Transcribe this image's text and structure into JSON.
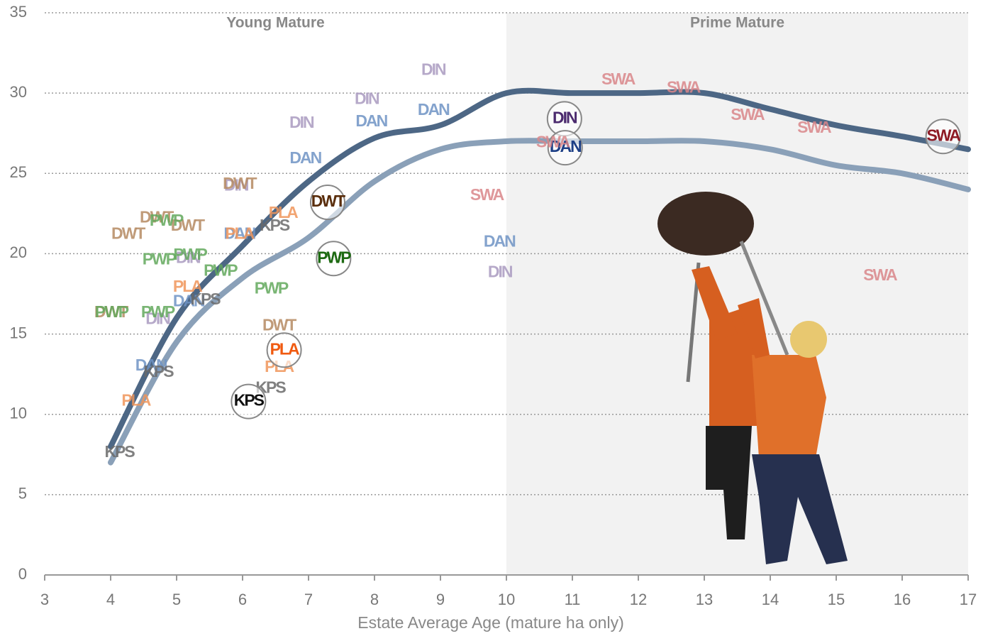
{
  "chart_data": {
    "type": "scatter",
    "xlabel": "Estate Average Age (mature ha only)",
    "xlim": [
      3,
      17
    ],
    "xticks": [
      3,
      4,
      5,
      6,
      7,
      8,
      9,
      10,
      11,
      12,
      13,
      14,
      15,
      16,
      17
    ],
    "ylim": [
      0,
      35
    ],
    "yticks": [
      0,
      5,
      10,
      15,
      20,
      25,
      30,
      35
    ],
    "grid": true,
    "regions": [
      {
        "label": "Young Mature",
        "xlim": [
          3,
          10
        ],
        "shaded": false
      },
      {
        "label": "Prime Mature",
        "xlim": [
          10,
          17
        ],
        "shaded": true
      }
    ],
    "curves": [
      {
        "color": "#4d6785",
        "x": [
          4,
          5,
          6,
          7,
          8,
          9,
          10,
          11,
          12,
          13,
          14,
          15,
          16,
          17
        ],
        "values": [
          8,
          16,
          20.5,
          24.5,
          27.2,
          28,
          30,
          30,
          30,
          30,
          29,
          28,
          27.3,
          26.5
        ]
      },
      {
        "color": "#8aa0b8",
        "x": [
          4,
          5,
          6,
          7,
          8,
          9,
          10,
          11,
          12,
          13,
          14,
          15,
          16,
          17
        ],
        "values": [
          7,
          14.5,
          18.5,
          21,
          24.5,
          26.5,
          27,
          27,
          27,
          27,
          26.5,
          25.5,
          25,
          24
        ]
      }
    ],
    "series": [
      {
        "name": "DIN",
        "color": "#a99ac0",
        "highlight": 7,
        "highlight_color": "#4b2a6e",
        "x": [
          8.89,
          7.88,
          6.89,
          5.9,
          5.17,
          4.71,
          9.9,
          10.88
        ],
        "values": [
          31.4,
          29.6,
          28.1,
          24.2,
          19.7,
          15.9,
          18.8,
          28.4
        ]
      },
      {
        "name": "DAN",
        "color": "#6f93c4",
        "highlight": 7,
        "highlight_color": "#1d3f86",
        "x": [
          8.89,
          7.95,
          6.95,
          5.95,
          5.18,
          4.61,
          9.89,
          10.89
        ],
        "values": [
          28.9,
          28.2,
          25.9,
          21.2,
          17.0,
          13.0,
          20.7,
          26.6
        ]
      },
      {
        "name": "SWA",
        "color": "#d9868a",
        "highlight": 7,
        "highlight_color": "#8e1b25",
        "x": [
          11.69,
          12.68,
          13.65,
          14.66,
          15.66,
          9.7,
          10.7,
          16.62
        ],
        "values": [
          30.8,
          30.3,
          28.6,
          27.8,
          18.6,
          23.6,
          26.9,
          27.3
        ]
      },
      {
        "name": "DWT",
        "color": "#b58a62",
        "highlight": 6,
        "highlight_color": "#5a2e0c",
        "x": [
          4.26,
          4.69,
          5.16,
          5.95,
          6.55,
          4.0,
          7.29
        ],
        "values": [
          21.2,
          22.2,
          21.7,
          24.3,
          15.5,
          16.3,
          23.2
        ]
      },
      {
        "name": "PWP",
        "color": "#62a85c",
        "highlight": 7,
        "highlight_color": "#1d6a12",
        "x": [
          4.73,
          4.84,
          5.2,
          5.66,
          6.43,
          4.71,
          4.01,
          7.38
        ],
        "values": [
          19.6,
          22.0,
          19.9,
          18.9,
          17.8,
          16.3,
          16.3,
          19.7
        ]
      },
      {
        "name": "PLA",
        "color": "#f0955a",
        "highlight": 5,
        "highlight_color": "#f05a10",
        "x": [
          6.61,
          5.95,
          5.16,
          6.55,
          4.38,
          6.63
        ],
        "values": [
          22.5,
          21.2,
          17.9,
          12.9,
          10.8,
          14.0
        ]
      },
      {
        "name": "KPS",
        "color": "#6a6a6a",
        "highlight": 5,
        "highlight_color": "#111111",
        "x": [
          6.48,
          5.43,
          4.72,
          6.42,
          4.13,
          6.09
        ],
        "values": [
          21.7,
          17.1,
          12.6,
          11.6,
          7.6,
          10.8
        ]
      }
    ]
  }
}
